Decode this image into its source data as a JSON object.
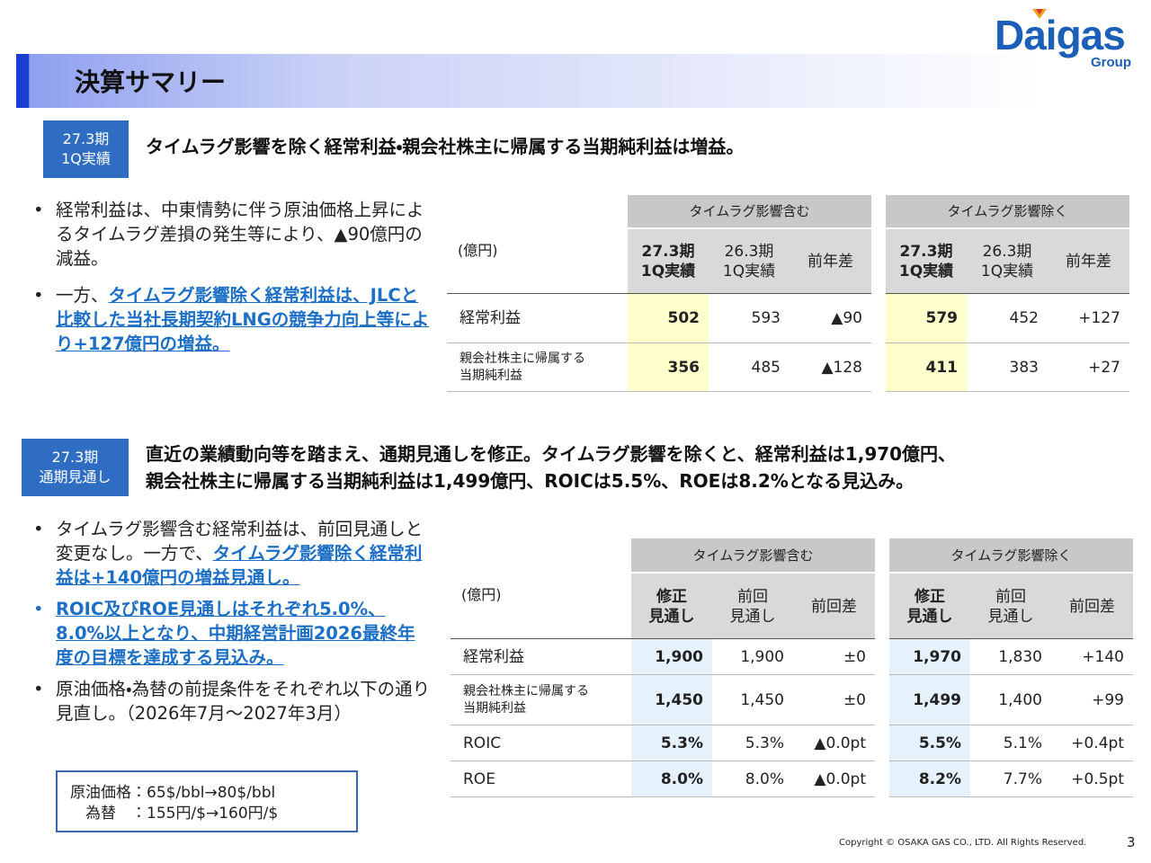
{
  "header": {
    "title": "決算サマリー",
    "logo": "Daigas",
    "logo_sub": "Group"
  },
  "sections": [
    {
      "badge": [
        "27.3期",
        "1Q実績"
      ],
      "headline": [
        "タイムラグ影響を除く経常利益・親会社株主に帰属する当期純利益は増益。"
      ],
      "bullets": [
        {
          "segments": [
            {
              "text": "経常利益は、中東情勢に伴う原油価格上昇によるタイムラグ差損の発生等により、▲90億円の減益。",
              "emphasis": false
            }
          ]
        },
        {
          "segments": [
            {
              "text": "一方、",
              "emphasis": false
            },
            {
              "text": "タイムラグ影響除く経常利益は、JLCと比較した当社長期契約LNGの競争力向上等により+127億円の増益。",
              "emphasis": true
            }
          ]
        }
      ],
      "table": {
        "unit": "(億円)",
        "groups": [
          {
            "name": "タイムラグ影響含む",
            "columns": [
              "27.3期\n1Q実績",
              "26.3期\n1Q実績",
              "前年差"
            ]
          },
          {
            "name": "タイムラグ影響除く",
            "columns": [
              "27.3期\n1Q実績",
              "26.3期\n1Q実績",
              "前年差"
            ]
          }
        ],
        "rows": [
          {
            "label": "経常利益",
            "values": [
              [
                "502",
                "593",
                "▲90"
              ],
              [
                "579",
                "452",
                "+127"
              ]
            ]
          },
          {
            "label": "親会社株主に帰属する\n当期純利益",
            "values": [
              [
                "356",
                "485",
                "▲128"
              ],
              [
                "411",
                "383",
                "+27"
              ]
            ]
          }
        ]
      }
    },
    {
      "badge": [
        "27.3期",
        "通期見通し"
      ],
      "headline": [
        "直近の業績動向等を踏まえ、通期見通しを修正。タイムラグ影響を除くと、経常利益は1,970億円、",
        "親会社株主に帰属する当期純利益は1,499億円、ROICは5.5%、ROEは8.2%となる見込み。"
      ],
      "bullets": [
        {
          "segments": [
            {
              "text": "タイムラグ影響含む経常利益は、前回見通しと変更なし。一方で、",
              "emphasis": false
            },
            {
              "text": "タイムラグ影響除く経常利益は+140億円の増益見通し。",
              "emphasis": true
            }
          ]
        },
        {
          "segments": [
            {
              "text": "ROIC及びROE見通しはそれぞれ5.0%、8.0%以上となり、中期経営計画2026最終年度の目標を達成する見込み。",
              "emphasis": true
            }
          ]
        },
        {
          "segments": [
            {
              "text": "原油価格・為替の前提条件をそれぞれ以下の通り見直し。（2026年7月～2027年3月）",
              "emphasis": false
            }
          ]
        }
      ],
      "box": [
        "原油価格：65$/bbl→80$/bbl",
        "　為替　：155円/$→160円/$"
      ],
      "table": {
        "unit": "(億円)",
        "groups": [
          {
            "name": "タイムラグ影響含む",
            "columns": [
              "修正\n見通し",
              "前回\n見通し",
              "前回差"
            ]
          },
          {
            "name": "タイムラグ影響除く",
            "columns": [
              "修正\n見通し",
              "前回\n見通し",
              "前回差"
            ]
          }
        ],
        "rows": [
          {
            "label": "経常利益",
            "values": [
              [
                "1,900",
                "1,900",
                "±0"
              ],
              [
                "1,970",
                "1,830",
                "+140"
              ]
            ]
          },
          {
            "label": "親会社株主に帰属する\n当期純利益",
            "values": [
              [
                "1,450",
                "1,450",
                "±0"
              ],
              [
                "1,499",
                "1,400",
                "+99"
              ]
            ]
          },
          {
            "label": "ROIC",
            "values": [
              [
                "5.3%",
                "5.3%",
                "▲0.0pt"
              ],
              [
                "5.5%",
                "5.1%",
                "+0.4pt"
              ]
            ]
          },
          {
            "label": "ROE",
            "values": [
              [
                "8.0%",
                "8.0%",
                "▲0.0pt"
              ],
              [
                "8.2%",
                "7.7%",
                "+0.5pt"
              ]
            ]
          }
        ]
      }
    }
  ],
  "footer": {
    "copyright": "Copyright © OSAKA GAS CO., LTD. All Rights Reserved.",
    "page": "3"
  }
}
